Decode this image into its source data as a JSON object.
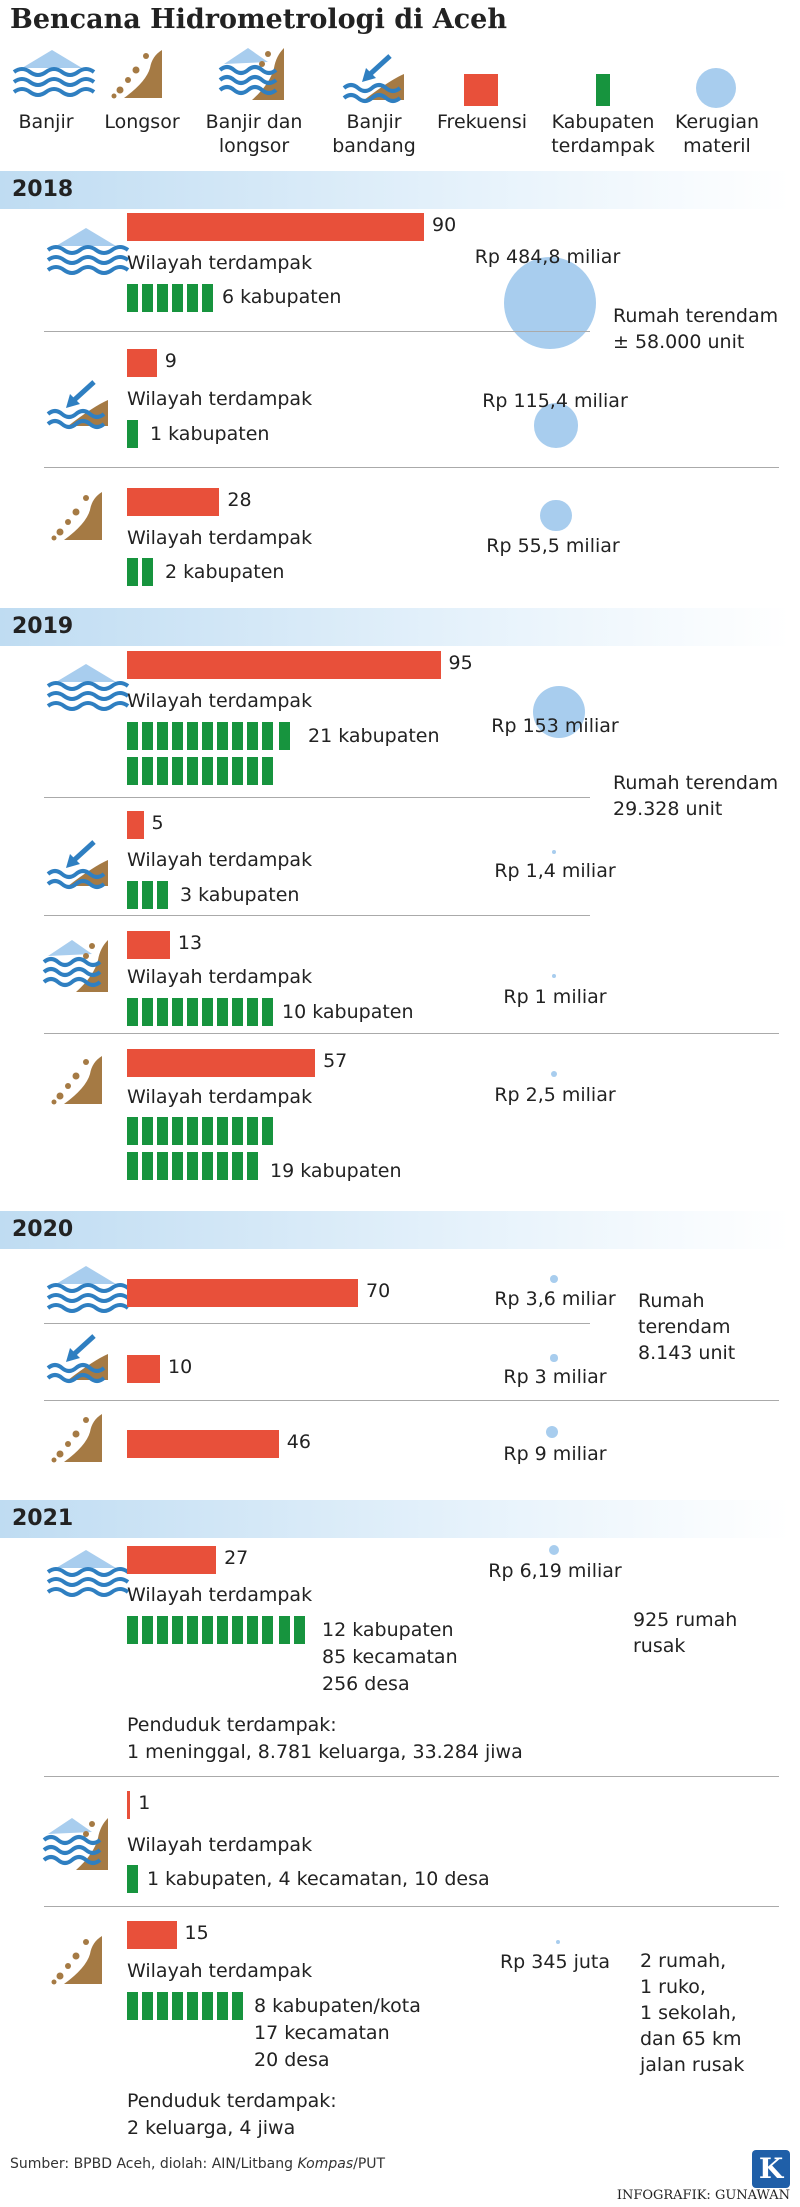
{
  "title": "Bencana Hidrometrologi di Aceh",
  "legend": {
    "banjir": "Banjir",
    "longsor": "Longsor",
    "banjir_longsor": "Banjir dan longsor",
    "banjir_bandang": "Banjir bandang",
    "frekuensi": "Frekuensi",
    "kabupaten": "Kabupaten terdampak",
    "kerugian": "Kerugian materil"
  },
  "wilayah_label": "Wilayah terdampak",
  "colors": {
    "frekuensi": "#e8503a",
    "kabupaten": "#17943e",
    "kerugian": "#a8cdee",
    "brown": "#a57a44",
    "water": "#2f7fc1"
  },
  "years": {
    "y2018": "2018",
    "y2019": "2019",
    "y2020": "2020",
    "y2021": "2021"
  },
  "chart_data": {
    "type": "bar",
    "title": "Bencana Hidrometrologi di Aceh",
    "series_names": [
      "Frekuensi",
      "Kabupaten terdampak",
      "Kerugian materil"
    ],
    "rows": [
      {
        "year": "2018",
        "type": "Banjir",
        "frequency": 90,
        "kabupaten": 6,
        "kab_text": "6 kabupaten",
        "loss": "Rp 484,8 miliar",
        "loss_value_miliar": 484.8
      },
      {
        "year": "2018",
        "type": "Banjir bandang",
        "frequency": 9,
        "kabupaten": 1,
        "kab_text": "1 kabupaten",
        "loss": "Rp 115,4 miliar",
        "loss_value_miliar": 115.4
      },
      {
        "year": "2018",
        "type": "Longsor",
        "frequency": 28,
        "kabupaten": 2,
        "kab_text": "2 kabupaten",
        "loss": "Rp 55,5 miliar",
        "loss_value_miliar": 55.5
      },
      {
        "year": "2019",
        "type": "Banjir",
        "frequency": 95,
        "kabupaten": 21,
        "kab_text": "21 kabupaten",
        "loss": "Rp 153 miliar",
        "loss_value_miliar": 153
      },
      {
        "year": "2019",
        "type": "Banjir bandang",
        "frequency": 5,
        "kabupaten": 3,
        "kab_text": "3 kabupaten",
        "loss": "Rp 1,4 miliar",
        "loss_value_miliar": 1.4
      },
      {
        "year": "2019",
        "type": "Banjir dan longsor",
        "frequency": 13,
        "kabupaten": 10,
        "kab_text": "10 kabupaten",
        "loss": "Rp 1 miliar",
        "loss_value_miliar": 1
      },
      {
        "year": "2019",
        "type": "Longsor",
        "frequency": 57,
        "kabupaten": 19,
        "kab_text": "19 kabupaten",
        "loss": "Rp 2,5 miliar",
        "loss_value_miliar": 2.5
      },
      {
        "year": "2020",
        "type": "Banjir",
        "frequency": 70,
        "loss": "Rp 3,6 miliar",
        "loss_value_miliar": 3.6
      },
      {
        "year": "2020",
        "type": "Banjir bandang",
        "frequency": 10,
        "loss": "Rp 3 miliar",
        "loss_value_miliar": 3
      },
      {
        "year": "2020",
        "type": "Longsor",
        "frequency": 46,
        "loss": "Rp 9 miliar",
        "loss_value_miliar": 9
      },
      {
        "year": "2021",
        "type": "Banjir",
        "frequency": 27,
        "kabupaten": 12,
        "kab_text": "12 kabupaten",
        "kab_extra": [
          "85 kecamatan",
          "256 desa"
        ],
        "loss": "Rp 6,19 miliar",
        "loss_value_miliar": 6.19
      },
      {
        "year": "2021",
        "type": "Banjir dan longsor",
        "frequency": 1,
        "kabupaten": 1,
        "kab_text": "1 kabupaten, 4 kecamatan, 10 desa"
      },
      {
        "year": "2021",
        "type": "Longsor",
        "frequency": 15,
        "kabupaten": 8,
        "kab_text": "8 kabupaten/kota",
        "kab_extra": [
          "17 kecamatan",
          "20 desa"
        ],
        "loss": "Rp 345 juta",
        "loss_value_miliar": 0.345
      }
    ]
  },
  "notes": {
    "n2018": [
      "Rumah terendam",
      "± 58.000 unit"
    ],
    "n2019": [
      "Rumah terendam",
      "29.328 unit"
    ],
    "n2020": [
      "Rumah",
      "terendam",
      "8.143 unit"
    ],
    "n2021a": [
      "925 rumah",
      "rusak"
    ],
    "n2021b": [
      "2 rumah,",
      "1 ruko,",
      "1 sekolah,",
      "dan 65 km",
      "jalan rusak"
    ]
  },
  "penduduk": {
    "label": "Penduduk terdampak:",
    "p1": "1 meninggal, 8.781 keluarga, 33.284 jiwa",
    "p2": "2 keluarga, 4 jiwa"
  },
  "source": {
    "prefix": "Sumber: BPBD Aceh, diolah: AIN/Litbang ",
    "italic": "Kompas",
    "suffix": "/PUT"
  },
  "credit": "INFOGRAFIK: GUNAWAN",
  "logo": "K"
}
